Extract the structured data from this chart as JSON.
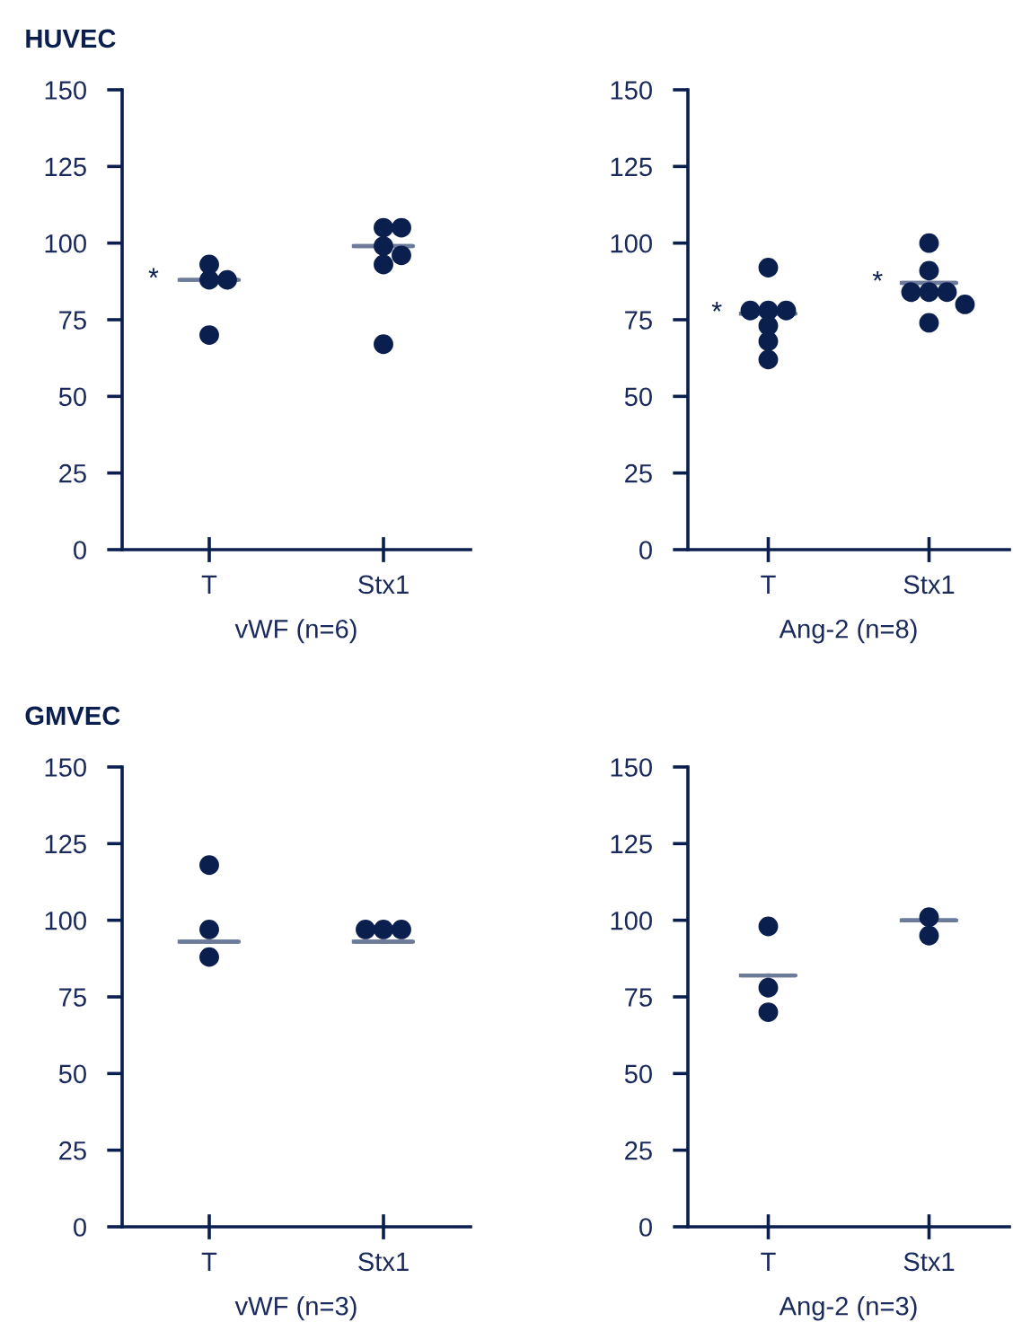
{
  "chart_data": [
    {
      "type": "scatter",
      "title": "HUVEC",
      "xlabel": "vWF (n=6)",
      "categories": [
        "T",
        "Stx1"
      ],
      "ylim": [
        0,
        150
      ],
      "yticks": [
        0,
        25,
        50,
        75,
        100,
        125,
        150
      ],
      "grid": false,
      "legend": false,
      "series": [
        {
          "color": "#0b1f4f",
          "marker": "circle",
          "x": [
            "T",
            "T",
            "T",
            "T",
            "Stx1",
            "Stx1",
            "Stx1",
            "Stx1",
            "Stx1",
            "Stx1"
          ],
          "values": [
            93,
            88,
            88,
            70,
            105,
            105,
            99,
            96,
            93,
            67
          ]
        },
        {
          "type": "box",
          "color": "#6d7b9a",
          "boxes": [
            {
              "low": 88,
              "q1": 88,
              "median": 88,
              "q3": 88,
              "high": 88
            },
            {
              "low": 99,
              "q1": 99,
              "median": 99,
              "q3": 99,
              "high": 99
            }
          ]
        }
      ],
      "annotations": [
        {
          "text": "*",
          "x": "T",
          "y": 88
        }
      ]
    },
    {
      "type": "scatter",
      "xlabel": "Ang-2 (n=8)",
      "categories": [
        "T",
        "Stx1"
      ],
      "ylim": [
        0,
        150
      ],
      "yticks": [
        0,
        25,
        50,
        75,
        100,
        125,
        150
      ],
      "grid": false,
      "legend": false,
      "series": [
        {
          "color": "#0b1f4f",
          "marker": "circle",
          "x": [
            "T",
            "T",
            "T",
            "T",
            "T",
            "T",
            "T",
            "Stx1",
            "Stx1",
            "Stx1",
            "Stx1",
            "Stx1",
            "Stx1",
            "Stx1"
          ],
          "values": [
            92,
            78,
            78,
            78,
            73,
            68,
            62,
            100,
            91,
            84,
            84,
            84,
            80,
            74
          ]
        },
        {
          "type": "box",
          "color": "#6d7b9a",
          "boxes": [
            {
              "low": 77,
              "q1": 77,
              "median": 77,
              "q3": 77,
              "high": 77
            },
            {
              "low": 87,
              "q1": 87,
              "median": 87,
              "q3": 87,
              "high": 87
            }
          ]
        }
      ],
      "annotations": [
        {
          "text": "*",
          "x": "T",
          "y": 77
        },
        {
          "text": "*",
          "x": "Stx1",
          "y": 87
        }
      ]
    },
    {
      "type": "scatter",
      "title": "GMVEC",
      "xlabel": "vWF (n=3)",
      "categories": [
        "T",
        "Stx1"
      ],
      "ylim": [
        0,
        150
      ],
      "yticks": [
        0,
        25,
        50,
        75,
        100,
        125,
        150
      ],
      "grid": false,
      "legend": false,
      "series": [
        {
          "color": "#0b1f4f",
          "marker": "circle",
          "x": [
            "T",
            "T",
            "T",
            "Stx1",
            "Stx1",
            "Stx1"
          ],
          "values": [
            118,
            97,
            88,
            97,
            97,
            97
          ]
        },
        {
          "type": "box",
          "color": "#6d7b9a",
          "boxes": [
            {
              "low": 93,
              "q1": 93,
              "median": 93,
              "q3": 93,
              "high": 93
            },
            {
              "low": 93,
              "q1": 93,
              "median": 93,
              "q3": 93,
              "high": 93
            }
          ]
        }
      ]
    },
    {
      "type": "scatter",
      "xlabel": "Ang-2 (n=3)",
      "categories": [
        "T",
        "Stx1"
      ],
      "ylim": [
        0,
        150
      ],
      "yticks": [
        0,
        25,
        50,
        75,
        100,
        125,
        150
      ],
      "grid": false,
      "legend": false,
      "series": [
        {
          "color": "#0b1f4f",
          "marker": "circle",
          "x": [
            "T",
            "T",
            "T",
            "Stx1",
            "Stx1"
          ],
          "values": [
            98,
            78,
            70,
            101,
            95
          ]
        },
        {
          "type": "box",
          "color": "#6d7b9a",
          "boxes": [
            {
              "low": 82,
              "q1": 82,
              "median": 82,
              "q3": 82,
              "high": 82
            },
            {
              "low": 100,
              "q1": 100,
              "median": 100,
              "q3": 100,
              "high": 100
            }
          ]
        }
      ]
    }
  ]
}
